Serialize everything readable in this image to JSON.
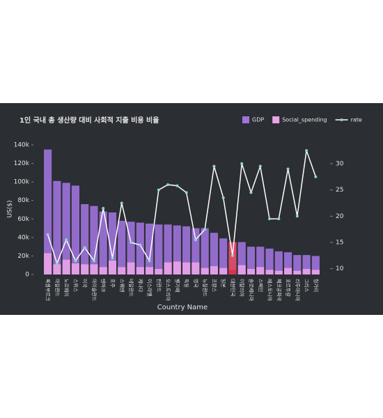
{
  "chart_data": {
    "type": "bar",
    "title": "1인 국내 총 생산량 대비 사회적 지출 비용 비율",
    "x_label": "Country Name",
    "y_label": "US($)",
    "categories": [
      "룩셈부르크",
      "아일랜드",
      "노르웨이",
      "스위스",
      "미국",
      "아이슬란드",
      "덴마크",
      "호주",
      "스웨덴",
      "네덜란드",
      "캐나다",
      "이스라엘",
      "핀란드",
      "오스트리아",
      "벨기에",
      "독일",
      "영국",
      "뉴질랜드",
      "프랑스",
      "일본",
      "대한민국",
      "이탈리아",
      "슬로베니아",
      "스페인",
      "에스토니아",
      "체코공화국",
      "포르투갈",
      "리투아니아",
      "그리스",
      "헝가리"
    ],
    "series": [
      {
        "name": "GDP",
        "type": "bar",
        "color": "#9f73db",
        "highlight_color": "#e8506e",
        "values": [
          135000,
          101000,
          99000,
          96000,
          76000,
          74000,
          68000,
          67000,
          58000,
          57000,
          56000,
          55000,
          54000,
          54000,
          53000,
          52000,
          50000,
          50000,
          45000,
          39000,
          35000,
          35000,
          30000,
          30000,
          28000,
          25000,
          24000,
          21000,
          21000,
          20000
        ]
      },
      {
        "name": "Social_spending",
        "type": "bar",
        "color": "#eba3ea",
        "highlight_color": "#d9304f",
        "values": [
          23000,
          11000,
          16000,
          12000,
          11000,
          11000,
          8000,
          15000,
          8000,
          13000,
          8000,
          8000,
          6000,
          13000,
          14000,
          13000,
          13000,
          7000,
          9000,
          7000,
          5000,
          10000,
          6000,
          8000,
          5000,
          4000,
          7000,
          4000,
          6000,
          5000
        ]
      },
      {
        "name": "rate",
        "type": "line",
        "axis": "y2",
        "color": "#ffffff",
        "marker_color": "#8fd6c8",
        "values": [
          16.5,
          11,
          15.5,
          11.5,
          14,
          11.5,
          21.5,
          12,
          22.5,
          15,
          14.5,
          11.5,
          25,
          26,
          25.8,
          24.5,
          15.5,
          17.5,
          29.5,
          23.5,
          12.5,
          30,
          24.5,
          29.5,
          19.5,
          19.5,
          29,
          20,
          32.5,
          27.5
        ]
      }
    ],
    "highlight_index": 20,
    "ylim": [
      0,
      143000
    ],
    "yticks": [
      0,
      {
        "value": 20000,
        "label": "20k"
      },
      {
        "value": 40000,
        "label": "40k"
      },
      {
        "value": 60000,
        "label": "60k"
      },
      {
        "value": 80000,
        "label": "80k"
      },
      {
        "value": 100000,
        "label": "100k"
      },
      {
        "value": 120000,
        "label": "120k"
      },
      {
        "value": 140000,
        "label": "140k"
      }
    ],
    "y2lim": [
      8.9,
      34.1
    ],
    "y2ticks": [
      10,
      15,
      20,
      25,
      30
    ],
    "legend": "top-right",
    "grid": false
  }
}
